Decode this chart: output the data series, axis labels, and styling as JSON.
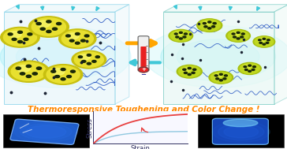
{
  "title_text": "Thermoresponsive Toughening and Color Change !",
  "title_color": "#FF8800",
  "title_fontsize": 7.5,
  "bg_color": "#ffffff",
  "left_box_face": "#e8f6fa",
  "left_box_edge": "#80d0e8",
  "right_box_face": "#e8f8f4",
  "right_box_edge": "#70c8c0",
  "cyan_arrow_color": "#40c8d8",
  "orange_arrow_color": "#FFA500",
  "sphere_yellow": "#e8e030",
  "sphere_yellow_hi": "#f8f870",
  "sphere_green": "#c0d820",
  "sphere_green_hi": "#e0f040",
  "sphere_dot": "#1a2808",
  "chain_color": "#2050c0",
  "dot_color": "#101828",
  "therm_red": "#e82020",
  "therm_body": "#e0e0e0",
  "therm_edge": "#404040",
  "stress_high_color": "#e84040",
  "stress_low_color": "#90c8e0",
  "stress_xlabel": "Strain",
  "stress_ylabel": "Stress",
  "stress_label_fontsize": 6.0,
  "photo_bg": "#000000",
  "gel_left_color": "#3070e8",
  "gel_right_color": "#4080f0",
  "gel_glow": "#60a0ff"
}
